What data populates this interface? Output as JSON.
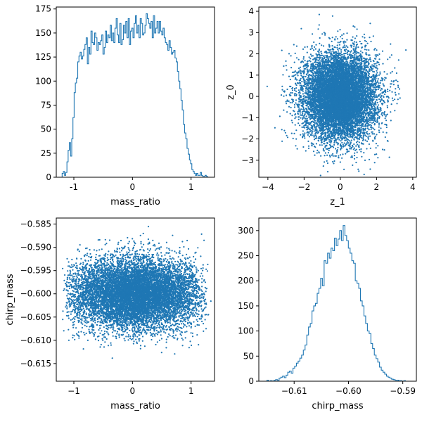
{
  "colors": {
    "series": "#1f77b4",
    "axes": "#000000",
    "background": "#ffffff"
  },
  "chart_data": [
    {
      "type": "histogram",
      "panel": "top-left",
      "xlabel": "mass_ratio",
      "ylabel": "",
      "xlim": [
        -1.3,
        1.4
      ],
      "ylim": [
        0,
        177
      ],
      "xticks": [
        -1,
        0,
        1
      ],
      "yticks": [
        0,
        25,
        50,
        75,
        100,
        125,
        150,
        175
      ],
      "ytick_labels": [
        "0",
        "25",
        "50",
        "75",
        "100",
        "125",
        "150",
        "175"
      ],
      "bin_range": [
        -1.2,
        1.3
      ],
      "counts": [
        4,
        6,
        2,
        5,
        16,
        28,
        36,
        22,
        40,
        62,
        88,
        98,
        103,
        120,
        126,
        130,
        123,
        126,
        133,
        138,
        145,
        118,
        135,
        128,
        152,
        140,
        138,
        150,
        145,
        132,
        140,
        138,
        142,
        148,
        128,
        135,
        152,
        140,
        148,
        145,
        158,
        142,
        150,
        140,
        155,
        165,
        148,
        140,
        160,
        138,
        143,
        158,
        150,
        162,
        145,
        165,
        138,
        152,
        155,
        145,
        160,
        168,
        150,
        158,
        145,
        165,
        160,
        148,
        150,
        158,
        170,
        165,
        160,
        155,
        162,
        145,
        168,
        150,
        155,
        162,
        150,
        162,
        152,
        148,
        155,
        145,
        140,
        138,
        132,
        142,
        135,
        128,
        130,
        132,
        124,
        120,
        110,
        100,
        92,
        80,
        70,
        55,
        46,
        40,
        30,
        24,
        18,
        14,
        8,
        6,
        4,
        2,
        4,
        2,
        2,
        5,
        2,
        1,
        1,
        2,
        1,
        0
      ]
    },
    {
      "type": "scatter",
      "panel": "top-right",
      "xlabel": "z_1",
      "ylabel": "z_0",
      "xlim": [
        -4.5,
        4.2
      ],
      "ylim": [
        -3.8,
        4.2
      ],
      "xticks": [
        -4,
        -2,
        0,
        2,
        4
      ],
      "xtick_labels": [
        "−4",
        "−2",
        "0",
        "2",
        "4"
      ],
      "yticks": [
        -3,
        -2,
        -1,
        0,
        1,
        2,
        3,
        4
      ],
      "ytick_labels": [
        "−3",
        "−2",
        "−1",
        "0",
        "1",
        "2",
        "3",
        "4"
      ],
      "distribution": {
        "x_mean": 0.0,
        "x_std": 1.0,
        "y_mean": 0.0,
        "y_std": 1.0,
        "n_points": 10000
      }
    },
    {
      "type": "scatter",
      "panel": "bottom-left",
      "xlabel": "mass_ratio",
      "ylabel": "chirp_mass",
      "xlim": [
        -1.3,
        1.4
      ],
      "ylim": [
        -0.6188,
        -0.5837
      ],
      "xticks": [
        -1,
        0,
        1
      ],
      "xtick_labels": [
        "−1",
        "0",
        "1"
      ],
      "yticks": [
        -0.615,
        -0.61,
        -0.605,
        -0.6,
        -0.595,
        -0.59,
        -0.585
      ],
      "ytick_labels": [
        "−0.615",
        "−0.610",
        "−0.605",
        "−0.600",
        "−0.595",
        "−0.590",
        "−0.585"
      ],
      "distribution": {
        "x_range": [
          -1.2,
          1.3
        ],
        "y_mean": -0.6,
        "y_std": 0.0038,
        "n_points": 10000
      }
    },
    {
      "type": "histogram",
      "panel": "bottom-right",
      "xlabel": "chirp_mass",
      "ylabel": "",
      "xlim": [
        -0.6165,
        -0.5875
      ],
      "ylim": [
        0,
        325
      ],
      "xticks": [
        -0.61,
        -0.6,
        -0.59
      ],
      "xtick_labels": [
        "−0.61",
        "−0.60",
        "−0.59"
      ],
      "yticks": [
        0,
        50,
        100,
        150,
        200,
        250,
        300
      ],
      "ytick_labels": [
        "0",
        "50",
        "100",
        "150",
        "200",
        "250",
        "300"
      ],
      "bin_range": [
        -0.615,
        -0.5895
      ],
      "counts": [
        2,
        0,
        1,
        0,
        2,
        3,
        2,
        6,
        8,
        10,
        7,
        12,
        18,
        20,
        16,
        26,
        30,
        36,
        40,
        46,
        52,
        62,
        72,
        92,
        108,
        115,
        140,
        150,
        155,
        175,
        185,
        205,
        190,
        240,
        235,
        255,
        245,
        265,
        260,
        285,
        270,
        283,
        300,
        280,
        310,
        290,
        280,
        265,
        255,
        240,
        235,
        200,
        195,
        185,
        160,
        150,
        130,
        115,
        100,
        95,
        75,
        65,
        52,
        45,
        38,
        28,
        22,
        18,
        14,
        10,
        8,
        6,
        4,
        3,
        2,
        2,
        1,
        1,
        0,
        1
      ]
    }
  ]
}
